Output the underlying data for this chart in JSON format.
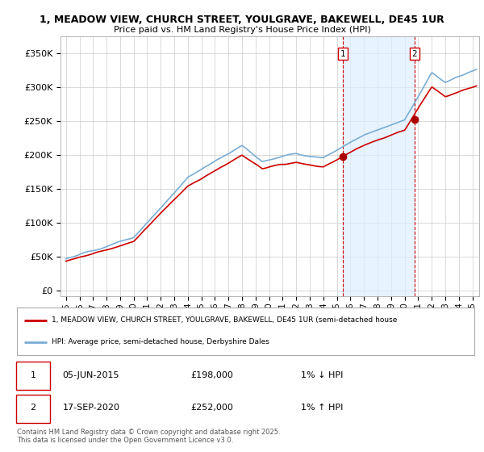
{
  "title_line1": "1, MEADOW VIEW, CHURCH STREET, YOULGRAVE, BAKEWELL, DE45 1UR",
  "title_line2": "Price paid vs. HM Land Registry's House Price Index (HPI)",
  "background_color": "#ffffff",
  "plot_bg_color": "#ffffff",
  "grid_color": "#cccccc",
  "line_color_hpi": "#7aadd4",
  "line_color_price": "#cc0000",
  "marker_color": "#aa0000",
  "shade_color": "#ddeeff",
  "vline_color": "#cc0000",
  "yticks": [
    0,
    50000,
    100000,
    150000,
    200000,
    250000,
    300000,
    350000
  ],
  "ytick_labels": [
    "£0",
    "£50K",
    "£100K",
    "£150K",
    "£200K",
    "£250K",
    "£300K",
    "£350K"
  ],
  "ylim": [
    -8000,
    375000
  ],
  "xlim_start": 1994.6,
  "xlim_end": 2025.5,
  "sale1_date": 2015.44,
  "sale1_price": 198000,
  "sale2_date": 2020.72,
  "sale2_price": 252000,
  "legend_label1": "1, MEADOW VIEW, CHURCH STREET, YOULGRAVE, BAKEWELL, DE45 1UR (semi-detached house",
  "legend_label2": "HPI: Average price, semi-detached house, Derbyshire Dales",
  "footer_line1": "Contains HM Land Registry data © Crown copyright and database right 2025.",
  "footer_line2": "This data is licensed under the Open Government Licence v3.0.",
  "table_row1": [
    "1",
    "05-JUN-2015",
    "£198,000",
    "1% ↓ HPI"
  ],
  "table_row2": [
    "2",
    "17-SEP-2020",
    "£252,000",
    "1% ↑ HPI"
  ]
}
